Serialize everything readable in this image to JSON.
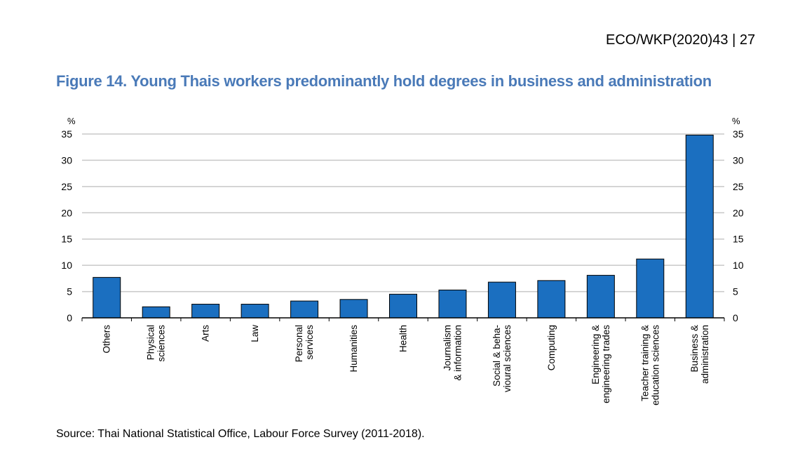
{
  "header_ref": "ECO/WKP(2020)43 | 27",
  "figure_title": "Figure 14. Young Thais workers predominantly hold degrees in business and administration",
  "source": "Source: Thai National Statistical Office, Labour Force Survey (2011-2018).",
  "colors": {
    "bar": "#1b6fc0",
    "bar_edge": "#000000",
    "grid": "#c8c8c8",
    "title": "#4a7ab8"
  },
  "chart_data": {
    "type": "bar",
    "title": "",
    "xlabel": "",
    "ylabel": "%",
    "ylabel_right": "%",
    "ylim": [
      0,
      35
    ],
    "yticks": [
      0,
      5,
      10,
      15,
      20,
      25,
      30,
      35
    ],
    "grid": true,
    "categories": [
      [
        "Others"
      ],
      [
        "Physical",
        "sciences"
      ],
      [
        "Arts"
      ],
      [
        "Law"
      ],
      [
        "Personal",
        "services"
      ],
      [
        "Humanities"
      ],
      [
        "Health"
      ],
      [
        "Journalism",
        "& information"
      ],
      [
        "Social & beha-",
        "vioural sciences"
      ],
      [
        "Computing"
      ],
      [
        "Engineering &",
        "engineering trades"
      ],
      [
        "Teacher training &",
        "education sciences"
      ],
      [
        "Business &",
        "administration"
      ]
    ],
    "values": [
      7.7,
      2.1,
      2.6,
      2.6,
      3.2,
      3.5,
      4.5,
      5.3,
      6.8,
      7.1,
      8.1,
      11.2,
      34.8
    ]
  }
}
